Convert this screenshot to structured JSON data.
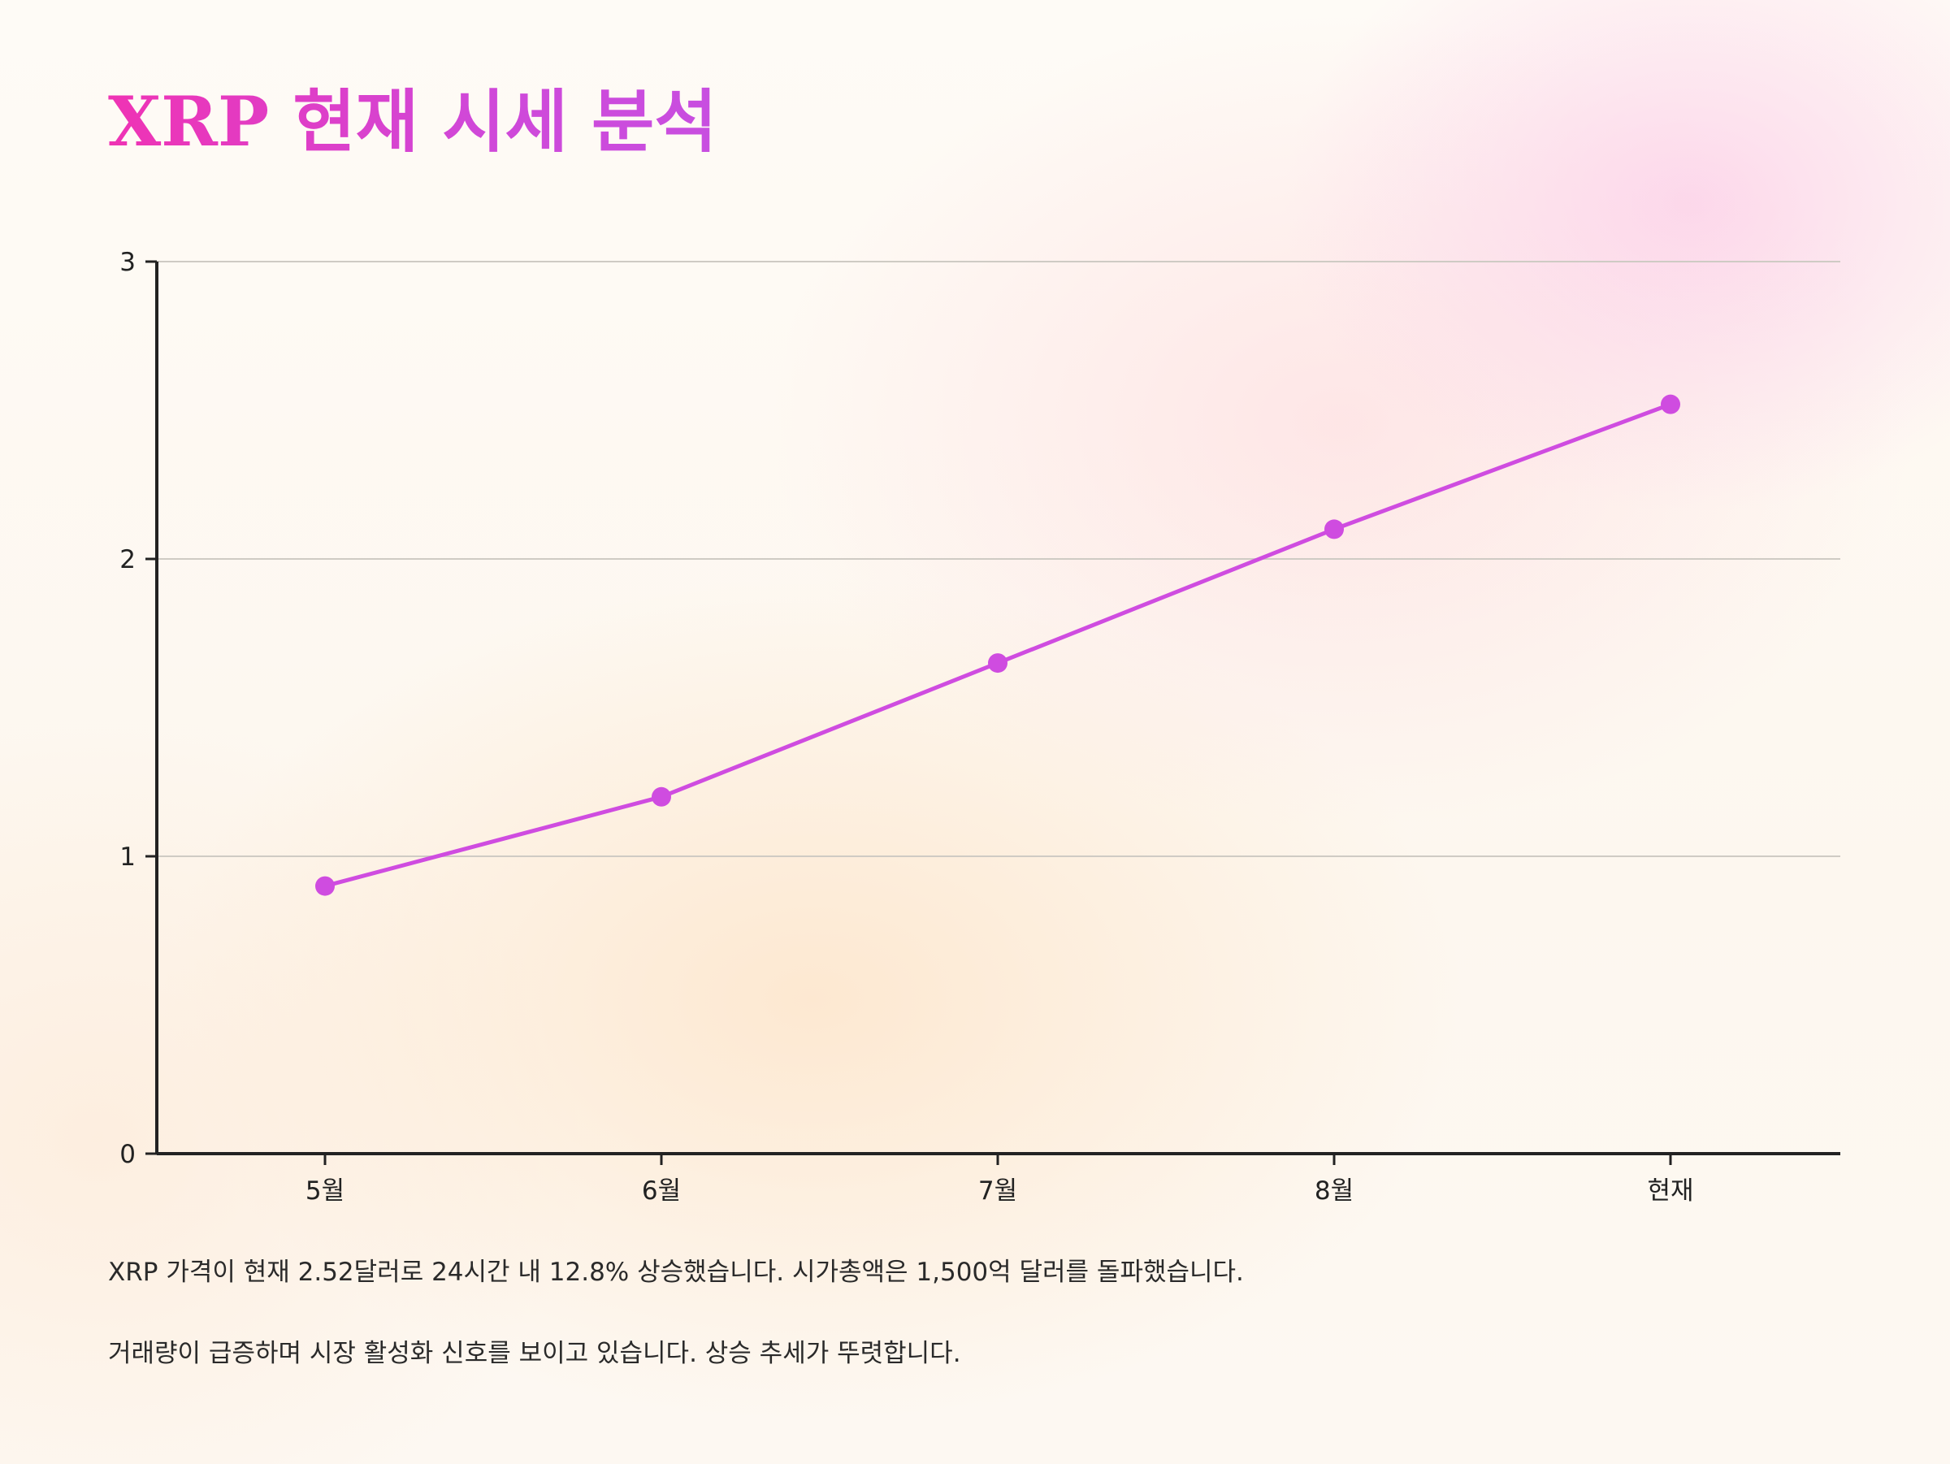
{
  "title": "XRP 현재 시세 분석",
  "chart_data": {
    "type": "line",
    "categories": [
      "5월",
      "6월",
      "7월",
      "8월",
      "현재"
    ],
    "values": [
      0.9,
      1.2,
      1.65,
      2.1,
      2.52
    ],
    "ylim": [
      0,
      3
    ],
    "yticks": [
      "0",
      "1",
      "2",
      "3"
    ],
    "grid": true,
    "line_color": "#cf4ce0",
    "marker_color": "#cf4ce0",
    "xlabel": "",
    "ylabel": ""
  },
  "paragraphs": [
    "XRP 가격이 현재 2.52달러로 24시간 내 12.8% 상승했습니다. 시가총액은 1,500억 달러를 돌파했습니다.",
    "거래량이 급증하며 시장 활성화 신호를 보이고 있습니다. 상승 추세가 뚜렷합니다."
  ]
}
